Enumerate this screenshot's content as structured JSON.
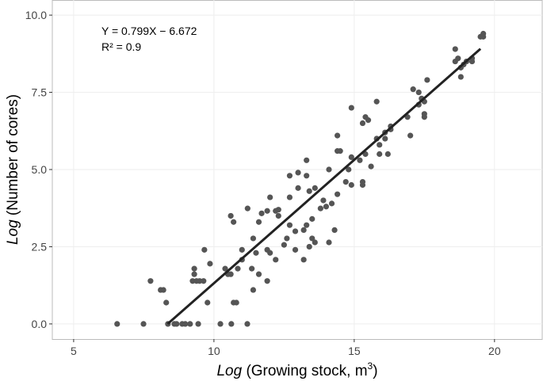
{
  "chart_data": {
    "type": "scatter",
    "x_label": {
      "italic": "Log",
      "text": "(Growing stock, m",
      "superscript": "3",
      "close": ")"
    },
    "y_label": {
      "italic": "Log",
      "text": "(Number of cores)"
    },
    "annotations": [
      "Y = 0.799X − 6.672",
      "R² = 0.9"
    ],
    "xlim": [
      4.24,
      21.7
    ],
    "ylim": [
      -0.49,
      10.49
    ],
    "xticks": [
      5,
      10,
      15,
      20
    ],
    "yticks": [
      {
        "value": 0,
        "label": "0.0"
      },
      {
        "value": 2.5,
        "label": "2.5"
      },
      {
        "value": 5,
        "label": "5.0"
      },
      {
        "value": 7.5,
        "label": "7.5"
      },
      {
        "value": 10,
        "label": "10.0"
      }
    ],
    "grid": true,
    "series": [
      {
        "type": "scatter",
        "color": "#555555",
        "x": [
          6.55,
          7.49,
          8.36,
          8.59,
          8.67,
          8.87,
          8.98,
          9.15,
          9.44,
          10.23,
          10.62,
          11.19,
          8.3,
          9.77,
          10.7,
          10.8,
          8.1,
          8.2,
          11.4,
          7.74,
          9.24,
          9.38,
          9.49,
          9.63,
          11.9,
          9.3,
          10.5,
          10.6,
          11.6,
          9.3,
          10.85,
          11.35,
          10.4,
          9.86,
          11.0,
          12.2,
          13.2,
          9.66,
          11.0,
          11.5,
          11.9,
          12.0,
          12.9,
          13.4,
          12.5,
          13.6,
          14.1,
          11.4,
          12.6,
          13.5,
          12.9,
          13.2,
          14.3,
          12.7,
          13.3,
          10.7,
          11.6,
          12.3,
          10.6,
          12.2,
          11.7,
          11.9,
          12.3,
          11.2,
          13.5,
          13.8,
          14.0,
          14.2,
          12.7,
          13.4,
          12.0,
          13.0,
          13.6,
          13.9,
          14.4,
          14.7,
          15.3,
          15.3,
          14.9,
          12.7,
          13.0,
          13.3,
          13.3,
          14.1,
          14.4,
          14.5,
          14.8,
          15.2,
          15.6,
          15.9,
          14.9,
          15.4,
          15.9,
          16.1,
          16.3,
          16.1,
          15.8,
          14.4,
          14.9,
          15.3,
          15.5,
          15.4,
          15.8,
          16.2,
          16.3,
          16.9,
          17.0,
          17.1,
          17.3,
          17.4,
          17.3,
          17.5,
          17.5,
          17.6,
          17.5,
          18.6,
          18.7,
          18.8,
          18.8,
          18.9,
          19.2,
          19.0,
          18.6,
          19.5,
          19.6,
          19.6,
          19.2
        ],
        "values": [
          0,
          0,
          0,
          0,
          0,
          0,
          0,
          0,
          0,
          0,
          0,
          0,
          0.69,
          0.69,
          0.69,
          0.69,
          1.1,
          1.1,
          1.1,
          1.39,
          1.39,
          1.39,
          1.39,
          1.39,
          1.39,
          1.61,
          1.61,
          1.61,
          1.61,
          1.79,
          1.79,
          1.79,
          1.79,
          1.95,
          2.08,
          2.08,
          2.08,
          2.4,
          2.4,
          2.3,
          2.4,
          2.3,
          2.4,
          2.5,
          2.56,
          2.64,
          2.64,
          2.77,
          2.77,
          2.77,
          3.0,
          3.04,
          3.04,
          3.2,
          3.2,
          3.3,
          3.3,
          3.5,
          3.5,
          3.66,
          3.58,
          3.66,
          3.7,
          3.74,
          3.4,
          3.74,
          3.8,
          3.9,
          4.1,
          4.3,
          4.1,
          4.4,
          4.4,
          4.0,
          4.2,
          4.6,
          4.5,
          4.6,
          4.5,
          4.8,
          4.9,
          4.8,
          5.3,
          5.0,
          5.6,
          5.6,
          5.0,
          5.3,
          5.1,
          5.5,
          5.4,
          5.5,
          5.8,
          6.0,
          6.4,
          6.2,
          6.0,
          6.1,
          7.0,
          6.5,
          6.6,
          6.7,
          7.2,
          5.5,
          6.3,
          6.7,
          6.1,
          7.6,
          7.5,
          7.3,
          7.1,
          6.8,
          6.7,
          7.9,
          7.2,
          8.5,
          8.6,
          8.0,
          8.3,
          8.4,
          8.6,
          8.5,
          8.9,
          9.3,
          9.3,
          9.4,
          8.5
        ]
      },
      {
        "type": "line",
        "color": "#222222",
        "x": [
          8.35,
          19.5
        ],
        "values": [
          0,
          8.91
        ]
      }
    ]
  }
}
